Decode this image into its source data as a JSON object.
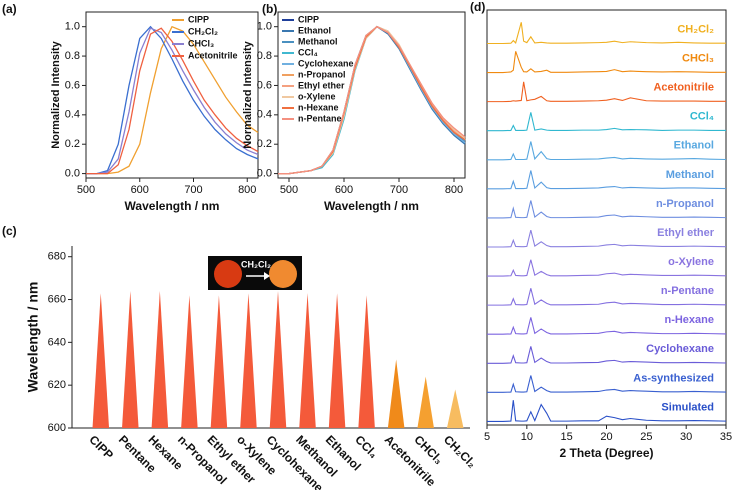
{
  "chart_data": [
    {
      "type": "line",
      "panel_label": "(a)",
      "x_label": "Wavelength / nm",
      "y_label": "Normalized Intensity",
      "x": [
        500,
        520,
        540,
        560,
        580,
        600,
        620,
        640,
        660,
        680,
        700,
        720,
        740,
        760,
        780,
        800,
        820
      ],
      "xlim": [
        500,
        820
      ],
      "xticks": [
        500,
        600,
        700,
        800
      ],
      "ylim": [
        -0.03,
        1.1
      ],
      "yticks": [
        {
          "value": 0,
          "label": "0.0"
        },
        0.2,
        0.4,
        0.6,
        0.8,
        {
          "value": 1,
          "label": "1.0"
        }
      ],
      "legend": "upper right",
      "series": [
        {
          "name": "CIPP",
          "color": "#f0a030",
          "values": [
            0,
            0,
            0,
            0.01,
            0.05,
            0.2,
            0.55,
            0.85,
            1.0,
            0.97,
            0.88,
            0.76,
            0.64,
            0.52,
            0.42,
            0.33,
            0.28
          ]
        },
        {
          "name": "CH₂Cl₂",
          "color": "#3a6fd0",
          "values": [
            0,
            0,
            0.02,
            0.2,
            0.6,
            0.92,
            1.0,
            0.92,
            0.78,
            0.63,
            0.5,
            0.39,
            0.3,
            0.23,
            0.17,
            0.13,
            0.1
          ]
        },
        {
          "name": "CHCl₃",
          "color": "#8a7fd0",
          "values": [
            0,
            0,
            0.01,
            0.1,
            0.42,
            0.82,
            0.99,
            0.96,
            0.84,
            0.7,
            0.57,
            0.45,
            0.35,
            0.27,
            0.21,
            0.16,
            0.13
          ]
        },
        {
          "name": "Acetonitrile",
          "color": "#f06040",
          "values": [
            0,
            0,
            0,
            0.06,
            0.3,
            0.7,
            0.95,
            0.99,
            0.9,
            0.77,
            0.63,
            0.5,
            0.4,
            0.31,
            0.24,
            0.19,
            0.15
          ]
        }
      ]
    },
    {
      "type": "line",
      "panel_label": "(b)",
      "x_label": "Wavelength / nm",
      "y_label": "Normalized Intensity",
      "x": [
        480,
        500,
        520,
        540,
        560,
        580,
        600,
        620,
        640,
        660,
        680,
        700,
        720,
        740,
        760,
        780,
        800,
        820
      ],
      "xlim": [
        480,
        820
      ],
      "xticks": [
        500,
        600,
        700,
        800
      ],
      "ylim": [
        -0.03,
        1.1
      ],
      "yticks": [
        {
          "value": 0,
          "label": "0.0"
        },
        0.2,
        0.4,
        0.6,
        0.8,
        {
          "value": 1,
          "label": "1.0"
        }
      ],
      "legend": "upper left",
      "series": [
        {
          "name": "CIPP",
          "color": "#1f3f9a",
          "values": [
            0,
            0,
            0.01,
            0.02,
            0.05,
            0.15,
            0.4,
            0.72,
            0.93,
            1.0,
            0.96,
            0.86,
            0.72,
            0.58,
            0.45,
            0.35,
            0.27,
            0.21
          ]
        },
        {
          "name": "Ethanol",
          "color": "#3a78b0",
          "values": [
            0,
            0,
            0.01,
            0.02,
            0.05,
            0.16,
            0.42,
            0.74,
            0.94,
            1.0,
            0.95,
            0.85,
            0.71,
            0.57,
            0.44,
            0.34,
            0.26,
            0.2
          ]
        },
        {
          "name": "Methanol",
          "color": "#4a90c0",
          "values": [
            0,
            0,
            0.01,
            0.02,
            0.05,
            0.14,
            0.39,
            0.71,
            0.93,
            1.0,
            0.96,
            0.87,
            0.73,
            0.59,
            0.46,
            0.36,
            0.28,
            0.22
          ]
        },
        {
          "name": "CCl₄",
          "color": "#40b8d0",
          "values": [
            0,
            0,
            0.01,
            0.02,
            0.04,
            0.13,
            0.37,
            0.7,
            0.92,
            1.0,
            0.97,
            0.87,
            0.73,
            0.6,
            0.47,
            0.37,
            0.29,
            0.23
          ]
        },
        {
          "name": "Cyclohexane",
          "color": "#70b0e0",
          "values": [
            0,
            0,
            0.01,
            0.02,
            0.05,
            0.15,
            0.41,
            0.73,
            0.93,
            1.0,
            0.96,
            0.86,
            0.72,
            0.58,
            0.45,
            0.35,
            0.27,
            0.21
          ]
        },
        {
          "name": "n-Propanol",
          "color": "#f0a060",
          "values": [
            0,
            0,
            0.01,
            0.02,
            0.05,
            0.16,
            0.42,
            0.73,
            0.94,
            1.0,
            0.96,
            0.86,
            0.73,
            0.6,
            0.48,
            0.38,
            0.3,
            0.24
          ]
        },
        {
          "name": "Ethyl ether",
          "color": "#f4a080",
          "values": [
            0,
            0,
            0.01,
            0.02,
            0.05,
            0.15,
            0.4,
            0.72,
            0.93,
            1.0,
            0.97,
            0.87,
            0.74,
            0.6,
            0.47,
            0.37,
            0.29,
            0.23
          ]
        },
        {
          "name": "o-Xylene",
          "color": "#f0c8a0",
          "values": [
            0,
            0,
            0.01,
            0.02,
            0.05,
            0.14,
            0.39,
            0.71,
            0.92,
            1.0,
            0.97,
            0.88,
            0.74,
            0.61,
            0.48,
            0.38,
            0.3,
            0.24
          ]
        },
        {
          "name": "n-Hexane",
          "color": "#f07040",
          "values": [
            0,
            0,
            0.01,
            0.02,
            0.05,
            0.15,
            0.41,
            0.72,
            0.93,
            1.0,
            0.96,
            0.86,
            0.73,
            0.59,
            0.46,
            0.36,
            0.28,
            0.23
          ]
        },
        {
          "name": "n-Pentane",
          "color": "#f49080",
          "values": [
            0,
            0,
            0.01,
            0.02,
            0.05,
            0.16,
            0.42,
            0.74,
            0.94,
            1.0,
            0.96,
            0.87,
            0.74,
            0.61,
            0.48,
            0.38,
            0.31,
            0.25
          ]
        }
      ]
    },
    {
      "type": "bar",
      "panel_label": "(c)",
      "y_label": "Wavelength / nm",
      "inset_label": "CH₂Cl₂",
      "categories": [
        "CIPP",
        "Pentane",
        "Hexane",
        "n-Propanol",
        "Ethyl ether",
        "o-Xylene",
        "Cyclohexane",
        "Methanol",
        "Ethanol",
        "CCl₄",
        "Acetonitrile",
        "CHCl₃",
        "CH₂Cl₂"
      ],
      "values": [
        663,
        664,
        664,
        662,
        662,
        663,
        664,
        663,
        663,
        662,
        632,
        624,
        618
      ],
      "colors": [
        "#f45a3a",
        "#f45a3a",
        "#f45a3a",
        "#f45a3a",
        "#f45a3a",
        "#f45a3a",
        "#f45a3a",
        "#f45a3a",
        "#f45a3a",
        "#f45a3a",
        "#f08a1a",
        "#f5a030",
        "#f7bc60"
      ],
      "ylim": [
        600,
        685
      ],
      "yticks": [
        600,
        620,
        640,
        660,
        680
      ]
    },
    {
      "type": "waterfall",
      "panel_label": "(d)",
      "x_label": "2 Theta (Degree)",
      "x": [
        5,
        7,
        8,
        8.3,
        8.6,
        9.3,
        9.6,
        10,
        10.5,
        11,
        11.8,
        12.5,
        13,
        15,
        17,
        19,
        20,
        21,
        22,
        23,
        25,
        27,
        29,
        31,
        33,
        35
      ],
      "xlim": [
        5,
        35
      ],
      "xticks": [
        5,
        10,
        15,
        20,
        25,
        30,
        35
      ],
      "series": [
        {
          "name": "CH₂Cl₂",
          "color": "#f0b020",
          "values": [
            0.02,
            0.02,
            0.03,
            0.12,
            0.04,
            0.75,
            0.1,
            0.05,
            0.25,
            0.04,
            0.06,
            0.04,
            0.03,
            0.03,
            0.04,
            0.05,
            0.06,
            0.1,
            0.05,
            0.08,
            0.05,
            0.04,
            0.06,
            0.04,
            0.03,
            0.03
          ]
        },
        {
          "name": "CHCl₃",
          "color": "#f08a10",
          "values": [
            0.02,
            0.02,
            0.04,
            0.1,
            0.75,
            0.2,
            0.05,
            0.04,
            0.15,
            0.04,
            0.06,
            0.1,
            0.03,
            0.03,
            0.04,
            0.05,
            0.06,
            0.12,
            0.05,
            0.07,
            0.05,
            0.04,
            0.05,
            0.04,
            0.03,
            0.03
          ]
        },
        {
          "name": "Acetonitrile",
          "color": "#f06020",
          "values": [
            0.02,
            0.02,
            0.03,
            0.05,
            0.04,
            0.06,
            0.7,
            0.05,
            0.08,
            0.1,
            0.2,
            0.05,
            0.03,
            0.03,
            0.04,
            0.05,
            0.07,
            0.12,
            0.06,
            0.15,
            0.05,
            0.04,
            0.04,
            0.04,
            0.03,
            0.03
          ]
        },
        {
          "name": "CCl₄",
          "color": "#30b8d0",
          "values": [
            0.02,
            0.02,
            0.03,
            0.2,
            0.03,
            0.03,
            0.03,
            0.04,
            0.65,
            0.04,
            0.08,
            0.04,
            0.03,
            0.03,
            0.04,
            0.04,
            0.06,
            0.1,
            0.05,
            0.06,
            0.05,
            0.03,
            0.04,
            0.04,
            0.03,
            0.03
          ]
        },
        {
          "name": "Ethanol",
          "color": "#58a8e0",
          "values": [
            0.02,
            0.02,
            0.03,
            0.22,
            0.03,
            0.03,
            0.03,
            0.04,
            0.65,
            0.05,
            0.3,
            0.06,
            0.03,
            0.03,
            0.04,
            0.05,
            0.08,
            0.1,
            0.05,
            0.07,
            0.05,
            0.04,
            0.05,
            0.06,
            0.04,
            0.03
          ]
        },
        {
          "name": "Methanol",
          "color": "#5a9ee0",
          "values": [
            0.02,
            0.02,
            0.03,
            0.28,
            0.03,
            0.03,
            0.03,
            0.04,
            0.65,
            0.05,
            0.25,
            0.06,
            0.03,
            0.03,
            0.04,
            0.05,
            0.08,
            0.1,
            0.05,
            0.07,
            0.05,
            0.04,
            0.05,
            0.05,
            0.04,
            0.03
          ]
        },
        {
          "name": "n-Propanol",
          "color": "#6e8ee0",
          "values": [
            0.02,
            0.02,
            0.03,
            0.35,
            0.04,
            0.03,
            0.03,
            0.04,
            0.62,
            0.05,
            0.22,
            0.07,
            0.03,
            0.03,
            0.04,
            0.05,
            0.1,
            0.12,
            0.06,
            0.08,
            0.06,
            0.04,
            0.04,
            0.05,
            0.04,
            0.03
          ]
        },
        {
          "name": "Ethyl ether",
          "color": "#8a80e0",
          "values": [
            0.02,
            0.02,
            0.03,
            0.25,
            0.04,
            0.03,
            0.03,
            0.04,
            0.6,
            0.05,
            0.2,
            0.07,
            0.03,
            0.03,
            0.04,
            0.05,
            0.09,
            0.11,
            0.06,
            0.08,
            0.06,
            0.04,
            0.04,
            0.05,
            0.04,
            0.03
          ]
        },
        {
          "name": "o-Xylene",
          "color": "#8a74e0",
          "values": [
            0.02,
            0.02,
            0.03,
            0.22,
            0.04,
            0.03,
            0.03,
            0.04,
            0.58,
            0.05,
            0.18,
            0.07,
            0.03,
            0.03,
            0.04,
            0.05,
            0.1,
            0.12,
            0.06,
            0.08,
            0.06,
            0.04,
            0.04,
            0.05,
            0.04,
            0.03
          ]
        },
        {
          "name": "n-Pentane",
          "color": "#8470e0",
          "values": [
            0.02,
            0.02,
            0.03,
            0.24,
            0.04,
            0.03,
            0.03,
            0.04,
            0.6,
            0.05,
            0.2,
            0.08,
            0.03,
            0.03,
            0.04,
            0.05,
            0.1,
            0.12,
            0.06,
            0.08,
            0.06,
            0.04,
            0.04,
            0.05,
            0.04,
            0.03
          ]
        },
        {
          "name": "n-Hexane",
          "color": "#7c64e0",
          "values": [
            0.02,
            0.02,
            0.03,
            0.26,
            0.04,
            0.03,
            0.03,
            0.04,
            0.6,
            0.05,
            0.2,
            0.08,
            0.03,
            0.03,
            0.04,
            0.05,
            0.1,
            0.12,
            0.06,
            0.08,
            0.06,
            0.04,
            0.04,
            0.05,
            0.04,
            0.03
          ]
        },
        {
          "name": "Cyclohexane",
          "color": "#6a5cd8",
          "values": [
            0.02,
            0.02,
            0.03,
            0.28,
            0.04,
            0.03,
            0.03,
            0.04,
            0.6,
            0.05,
            0.2,
            0.08,
            0.03,
            0.03,
            0.04,
            0.05,
            0.1,
            0.12,
            0.06,
            0.08,
            0.06,
            0.04,
            0.04,
            0.05,
            0.04,
            0.03
          ]
        },
        {
          "name": "As-synthesized",
          "color": "#3a60d0",
          "values": [
            0.02,
            0.02,
            0.03,
            0.3,
            0.04,
            0.03,
            0.03,
            0.04,
            0.6,
            0.05,
            0.2,
            0.08,
            0.03,
            0.03,
            0.04,
            0.05,
            0.1,
            0.12,
            0.06,
            0.08,
            0.06,
            0.04,
            0.04,
            0.05,
            0.04,
            0.03
          ]
        },
        {
          "name": "Simulated",
          "color": "#2a50c8",
          "values": [
            0.02,
            0.02,
            0.03,
            0.75,
            0.04,
            0.03,
            0.03,
            0.04,
            0.35,
            0.05,
            0.6,
            0.3,
            0.03,
            0.03,
            0.04,
            0.04,
            0.2,
            0.15,
            0.08,
            0.12,
            0.06,
            0.04,
            0.04,
            0.05,
            0.04,
            0.03
          ]
        }
      ]
    }
  ]
}
